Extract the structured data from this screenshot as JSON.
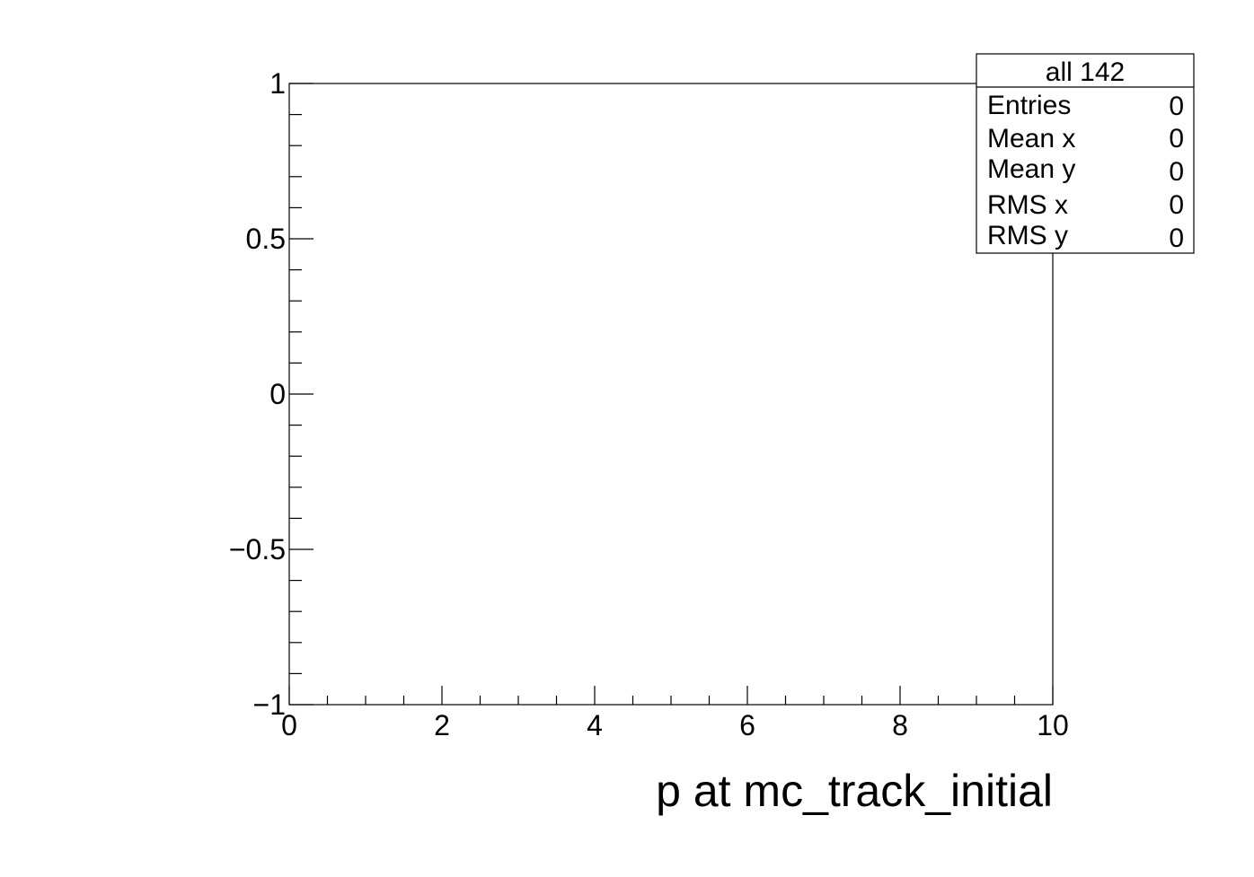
{
  "chart_data": {
    "type": "scatter",
    "title": "",
    "xlabel": "p at mc_track_initial",
    "ylabel": "",
    "xlim": [
      0,
      10
    ],
    "ylim": [
      -1,
      1
    ],
    "x_ticks": [
      "0",
      "2",
      "4",
      "6",
      "8",
      "10"
    ],
    "y_ticks": [
      "−1",
      "−0.5",
      "0",
      "0.5",
      "1"
    ],
    "series": [],
    "grid": false,
    "stats_box": {
      "title": "all 142",
      "rows": [
        {
          "label": "Entries",
          "value": "0"
        },
        {
          "label": "Mean x",
          "value": "0"
        },
        {
          "label": "Mean y",
          "value": "0"
        },
        {
          "label": "RMS x",
          "value": "0"
        },
        {
          "label": "RMS y",
          "value": "0"
        }
      ]
    }
  }
}
